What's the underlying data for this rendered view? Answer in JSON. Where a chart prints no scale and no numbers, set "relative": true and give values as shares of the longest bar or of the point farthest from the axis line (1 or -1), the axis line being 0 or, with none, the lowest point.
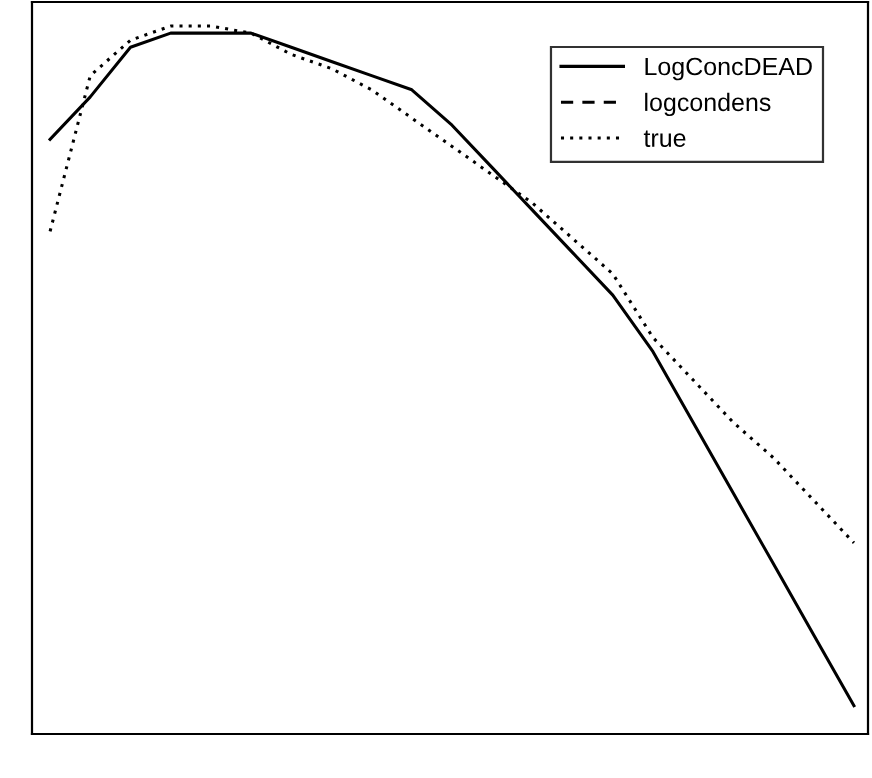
{
  "chart_data": {
    "type": "line",
    "relative": true,
    "legend": "top right",
    "grid": false,
    "categories": [
      null,
      null,
      null,
      null,
      null,
      null,
      null,
      null,
      null,
      null,
      null,
      null,
      null,
      null,
      null,
      null,
      null,
      null,
      null,
      null,
      null
    ],
    "series": [
      {
        "name": "LogConcDEAD",
        "color": "#000000",
        "line_style": "solid",
        "values": [
          0.84,
          0.9,
          0.97,
          0.99,
          0.99,
          0.99,
          0.97,
          0.95,
          0.93,
          0.91,
          0.86,
          0.8,
          0.74,
          0.68,
          0.62,
          0.54,
          0.44,
          0.34,
          0.24,
          0.14,
          0.04
        ]
      },
      {
        "name": "logcondens",
        "color": "#000000",
        "line_style": "dashed",
        "values": [
          null,
          null,
          null,
          null,
          null,
          null,
          null,
          null,
          null,
          null,
          null,
          null,
          null,
          null,
          null,
          null,
          null,
          null,
          null,
          null,
          null
        ]
      },
      {
        "name": "true",
        "color": "#000000",
        "line_style": "dotted",
        "values": [
          0.71,
          0.93,
          0.98,
          1.0,
          1.0,
          0.99,
          0.96,
          0.94,
          0.91,
          0.87,
          0.83,
          0.79,
          0.75,
          0.7,
          0.65,
          0.56,
          0.5,
          0.44,
          0.39,
          0.33,
          0.27
        ]
      }
    ]
  }
}
